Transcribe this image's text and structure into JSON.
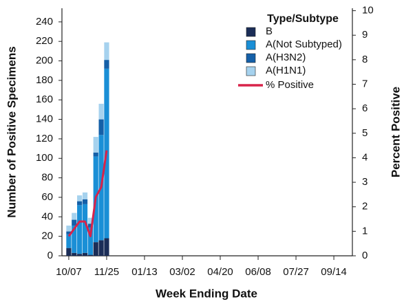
{
  "chart_data": {
    "type": "bar",
    "x_label": "Week Ending Date",
    "y_label": "Number of Positive Specimens",
    "y2_label": "Percent Positive",
    "legend_title": "Type/Subtype",
    "categories": [
      "10/07",
      null,
      null,
      null,
      null,
      null,
      null,
      "11/25",
      null,
      null,
      null,
      null,
      null,
      null,
      "01/13",
      null,
      null,
      null,
      null,
      null,
      null,
      "03/02",
      null,
      null,
      null,
      null,
      null,
      null,
      "04/20",
      null,
      null,
      null,
      null,
      null,
      null,
      "06/08",
      null,
      null,
      null,
      null,
      null,
      null,
      "07/27",
      null,
      null,
      null,
      null,
      null,
      null,
      "09/14",
      null,
      null
    ],
    "series": [
      {
        "name": "B",
        "color": "#1b2d57",
        "values": [
          8,
          3,
          2,
          3,
          1,
          14,
          16,
          18,
          null,
          null,
          null,
          null,
          null,
          null,
          null,
          null,
          null,
          null,
          null,
          null,
          null,
          null,
          null,
          null,
          null,
          null,
          null,
          null,
          null,
          null,
          null,
          null,
          null,
          null,
          null,
          null,
          null,
          null,
          null,
          null,
          null,
          null,
          null,
          null,
          null,
          null,
          null,
          null,
          null,
          null,
          null,
          null
        ]
      },
      {
        "name": "A(Not Subtyped)",
        "color": "#1a8fd6",
        "values": [
          14,
          28,
          50,
          50,
          28,
          88,
          108,
          174,
          null,
          null,
          null,
          null,
          null,
          null,
          null,
          null,
          null,
          null,
          null,
          null,
          null,
          null,
          null,
          null,
          null,
          null,
          null,
          null,
          null,
          null,
          null,
          null,
          null,
          null,
          null,
          null,
          null,
          null,
          null,
          null,
          null,
          null,
          null,
          null,
          null,
          null,
          null,
          null,
          null,
          null,
          null,
          null
        ]
      },
      {
        "name": "A(H3N2)",
        "color": "#1560a8",
        "values": [
          3,
          6,
          4,
          5,
          4,
          4,
          16,
          9,
          null,
          null,
          null,
          null,
          null,
          null,
          null,
          null,
          null,
          null,
          null,
          null,
          null,
          null,
          null,
          null,
          null,
          null,
          null,
          null,
          null,
          null,
          null,
          null,
          null,
          null,
          null,
          null,
          null,
          null,
          null,
          null,
          null,
          null,
          null,
          null,
          null,
          null,
          null,
          null,
          null,
          null,
          null,
          null
        ]
      },
      {
        "name": "A(H1N1)",
        "color": "#a6d2ee",
        "values": [
          6,
          7,
          6,
          7,
          6,
          16,
          16,
          18,
          null,
          null,
          null,
          null,
          null,
          null,
          null,
          null,
          null,
          null,
          null,
          null,
          null,
          null,
          null,
          null,
          null,
          null,
          null,
          null,
          null,
          null,
          null,
          null,
          null,
          null,
          null,
          null,
          null,
          null,
          null,
          null,
          null,
          null,
          null,
          null,
          null,
          null,
          null,
          null,
          null,
          null,
          null,
          null
        ]
      },
      {
        "name": "% Positive",
        "color": "#d8234a",
        "axis": "y2",
        "values": [
          0.8,
          1.1,
          1.4,
          1.4,
          0.8,
          2.4,
          2.8,
          4.3,
          null,
          null,
          null,
          null,
          null,
          null,
          null,
          null,
          null,
          null,
          null,
          null,
          null,
          null,
          null,
          null,
          null,
          null,
          null,
          null,
          null,
          null,
          null,
          null,
          null,
          null,
          null,
          null,
          null,
          null,
          null,
          null,
          null,
          null,
          null,
          null,
          null,
          null,
          null,
          null,
          null,
          null,
          null,
          null
        ]
      }
    ],
    "ylim": [
      0,
      254
    ],
    "yticks": [
      0,
      20,
      40,
      60,
      80,
      100,
      120,
      140,
      160,
      180,
      200,
      220,
      240
    ],
    "y2lim": [
      0,
      10.1
    ],
    "y2ticks": [
      0,
      1,
      2,
      3,
      4,
      5,
      6,
      7,
      8,
      9,
      10
    ]
  }
}
